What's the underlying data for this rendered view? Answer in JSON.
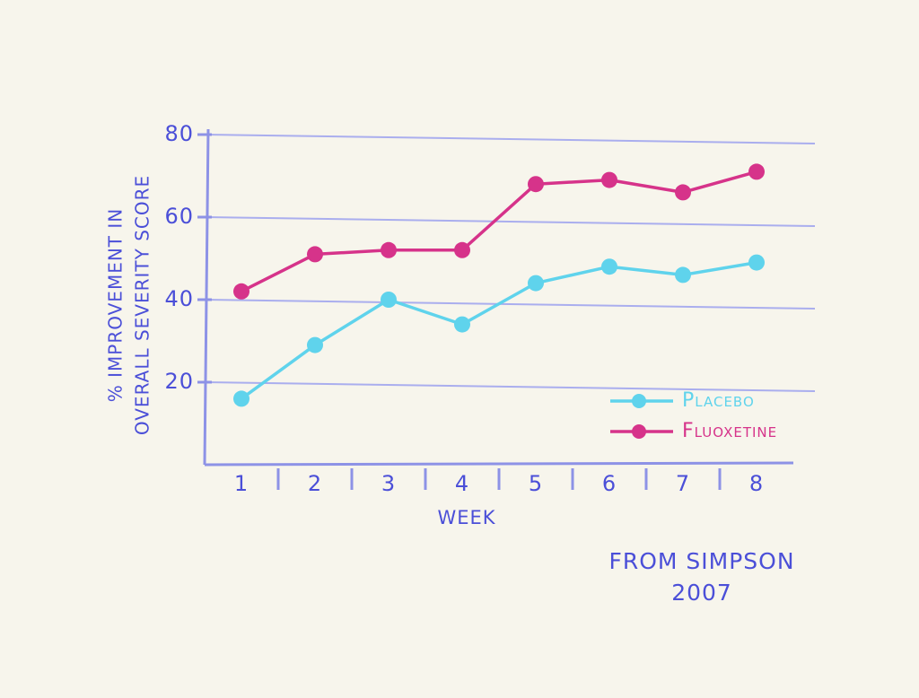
{
  "chart_data": {
    "type": "line",
    "y_label": [
      "% IMPROVEMENT IN",
      "OVERALL SEVERITY SCORE"
    ],
    "x_label": "WEEK",
    "annotation": [
      "FROM SIMPSON",
      "2007"
    ],
    "categories": [
      "1",
      "2",
      "3",
      "4",
      "5",
      "6",
      "7",
      "8"
    ],
    "series": [
      {
        "name": "Placebo",
        "color": "#5fd3ec",
        "values": [
          16,
          29,
          40,
          34,
          44,
          48,
          46,
          49
        ]
      },
      {
        "name": "Fluoxetine",
        "color": "#d6338a",
        "values": [
          42,
          51,
          52,
          52,
          68,
          69,
          66,
          71
        ]
      }
    ],
    "ylim": [
      0,
      80
    ],
    "yticks": [
      20,
      40,
      60,
      80
    ],
    "grid": true,
    "legend": "lower right"
  }
}
